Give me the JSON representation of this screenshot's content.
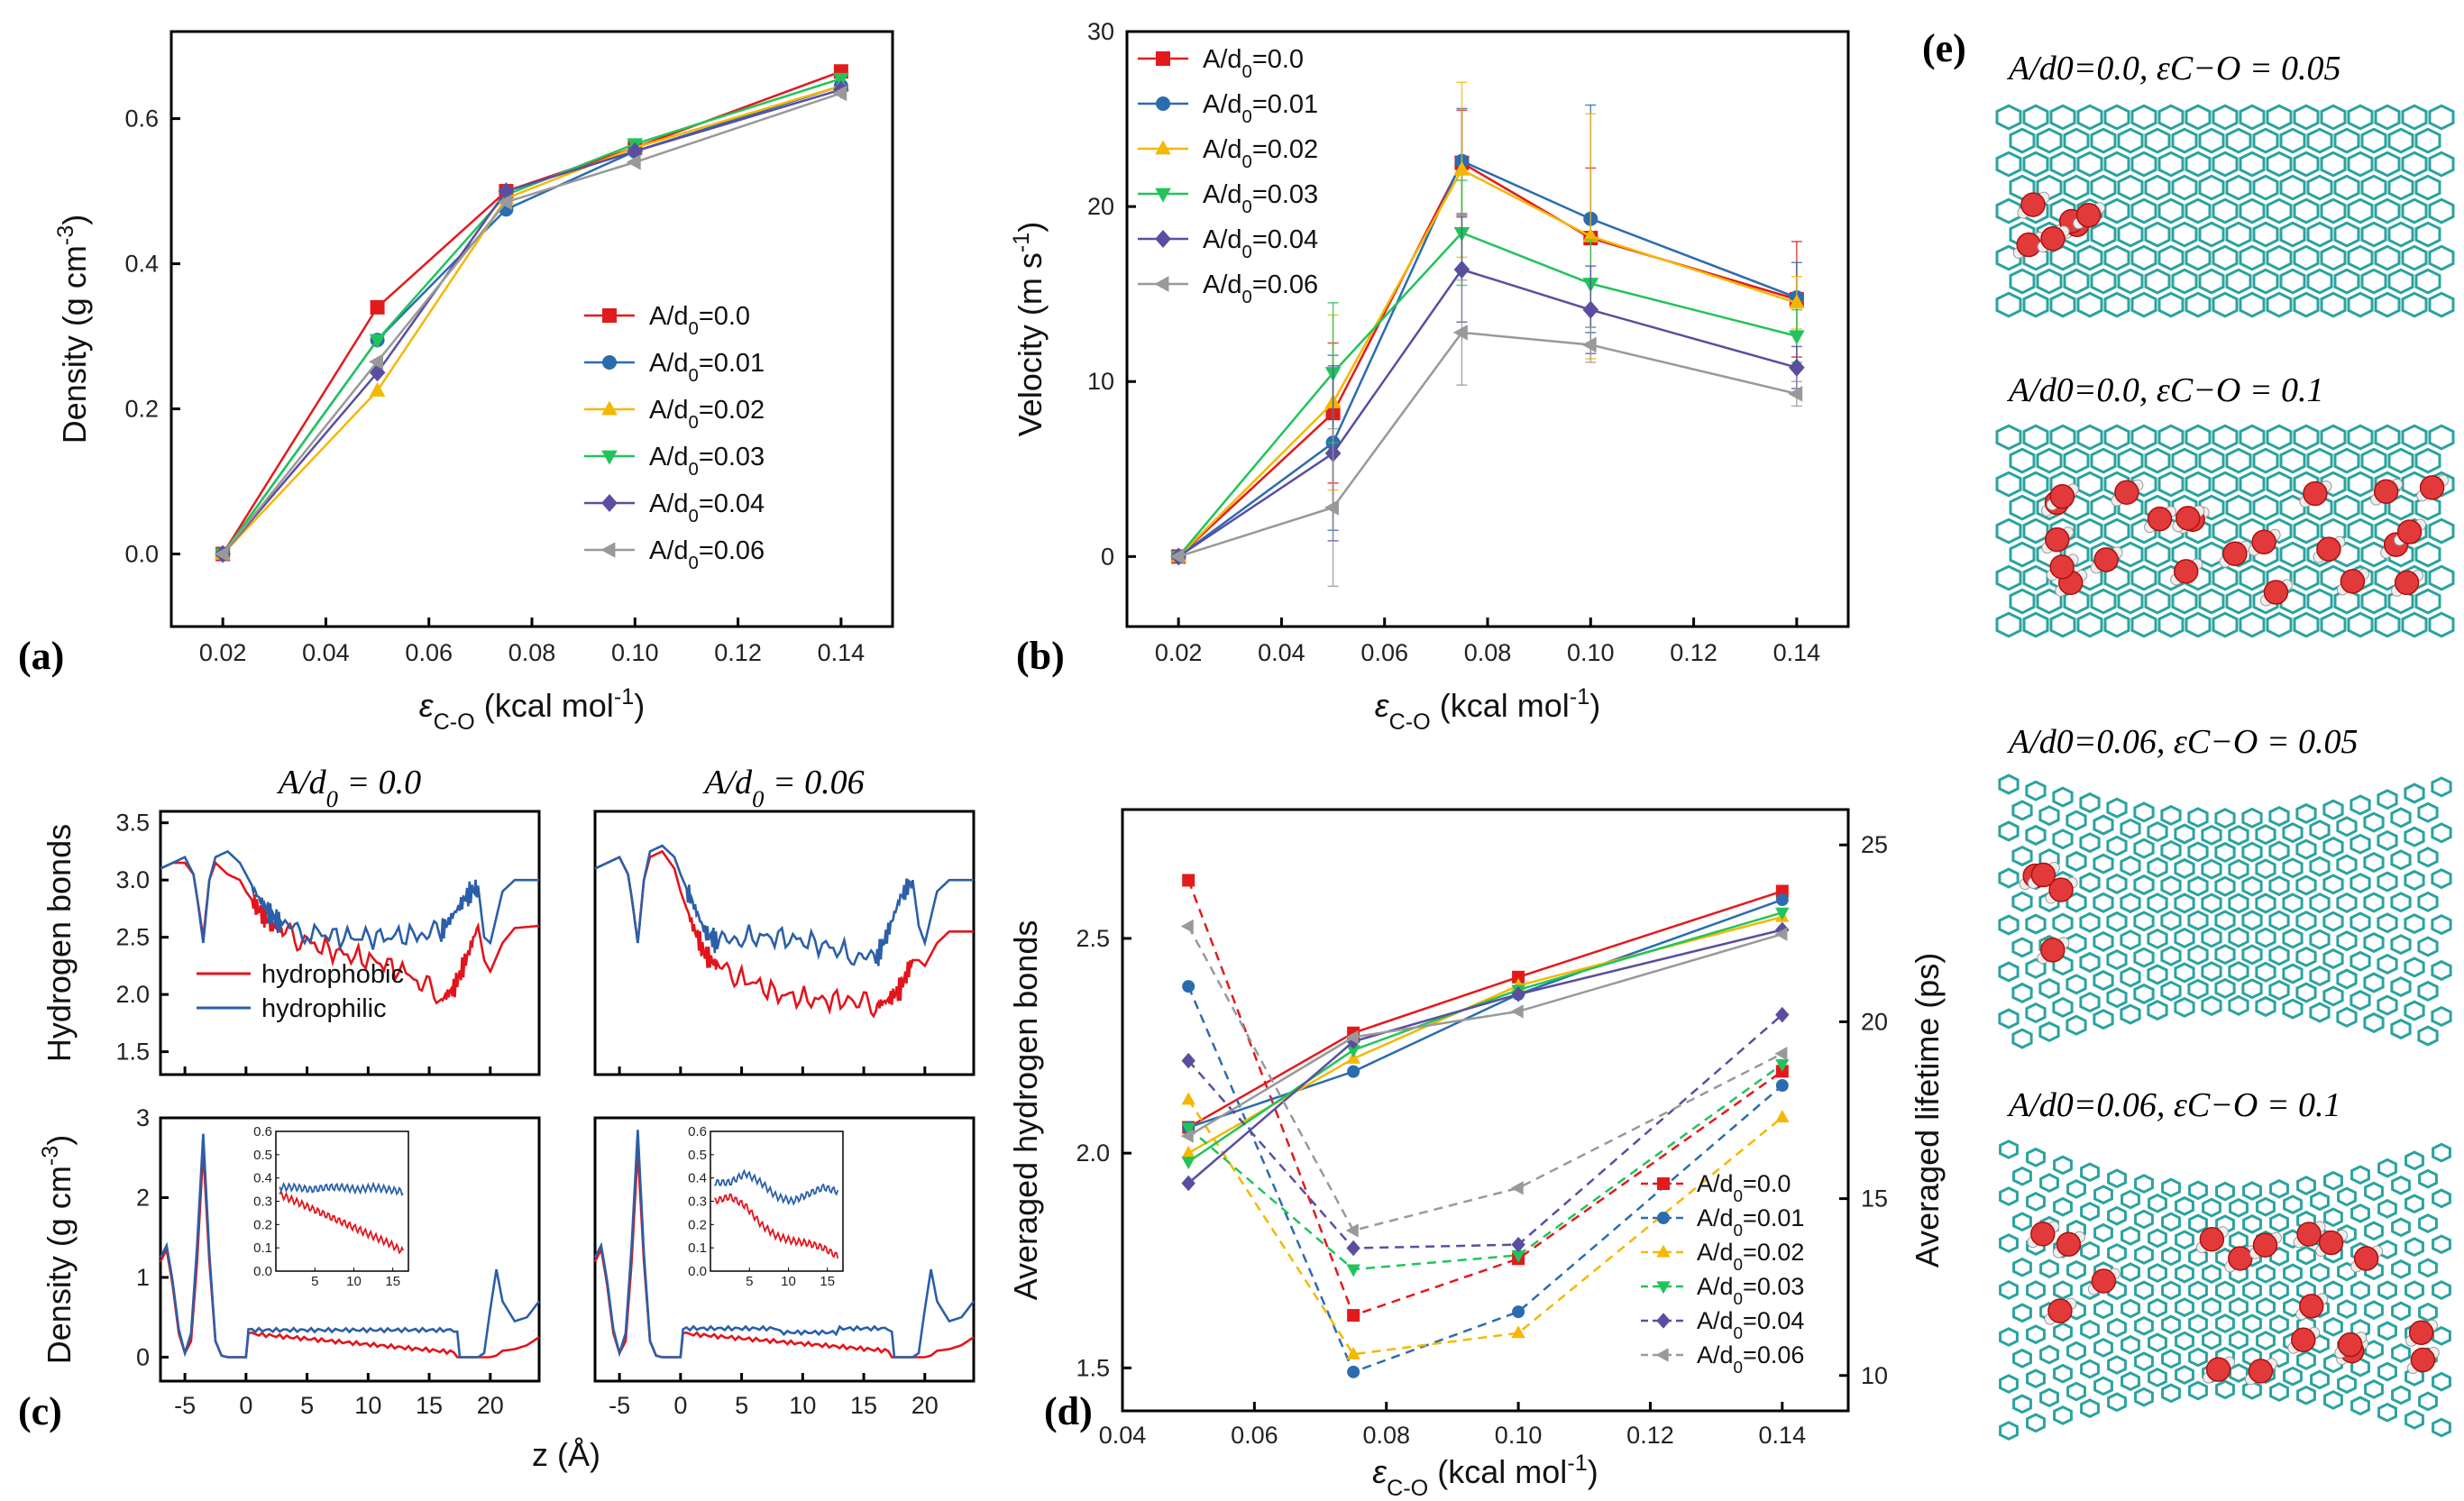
{
  "colors": {
    "s0": "#e31a1c",
    "s1": "#2b6cb0",
    "s2": "#f5b800",
    "s3": "#21c45a",
    "s4": "#5a4ea0",
    "s5": "#999999",
    "hydrophobic": "#e3141c",
    "hydrophilic": "#2b5fa8",
    "cnt": "#2aa39f",
    "oxygen": "#e23a3a",
    "hydrogen": "#eeeeee"
  },
  "panel_labels": {
    "a": "(a)",
    "b": "(b)",
    "c": "(c)",
    "d": "(d)",
    "e": "(e)"
  },
  "chart_data": [
    {
      "id": "a",
      "type": "line",
      "xlabel": "ε_C-O (kcal mol^-1)",
      "ylabel": "Density (g cm^-3)",
      "xlim": [
        0.01,
        0.15
      ],
      "ylim": [
        -0.1,
        0.72
      ],
      "xticks": [
        "0.02",
        "0.04",
        "0.06",
        "0.08",
        "0.10",
        "0.12",
        "0.14"
      ],
      "yticks": [
        "0.0",
        "0.2",
        "0.4",
        "0.6"
      ],
      "x": [
        0.02,
        0.05,
        0.075,
        0.1,
        0.14
      ],
      "legend_position": "center-right",
      "series": [
        {
          "name": "A/d0=0.0",
          "values": [
            0.0,
            0.34,
            0.5,
            0.56,
            0.665
          ],
          "marker": "square"
        },
        {
          "name": "A/d0=0.01",
          "values": [
            0.0,
            0.295,
            0.475,
            0.555,
            0.645
          ],
          "marker": "circle"
        },
        {
          "name": "A/d0=0.02",
          "values": [
            0.0,
            0.225,
            0.49,
            0.56,
            0.645
          ],
          "marker": "triangle-up"
        },
        {
          "name": "A/d0=0.03",
          "values": [
            0.0,
            0.295,
            0.495,
            0.565,
            0.655
          ],
          "marker": "triangle-down"
        },
        {
          "name": "A/d0=0.04",
          "values": [
            0.0,
            0.25,
            0.5,
            0.555,
            0.64
          ],
          "marker": "diamond"
        },
        {
          "name": "A/d0=0.06",
          "values": [
            0.0,
            0.265,
            0.485,
            0.54,
            0.635
          ],
          "marker": "triangle-left"
        }
      ]
    },
    {
      "id": "b",
      "type": "line",
      "xlabel": "ε_C-O (kcal mol^-1)",
      "ylabel": "Velocity (m s^-1)",
      "xlim": [
        0.01,
        0.15
      ],
      "ylim": [
        -4,
        30
      ],
      "xticks": [
        "0.02",
        "0.04",
        "0.06",
        "0.08",
        "0.10",
        "0.12",
        "0.14"
      ],
      "yticks": [
        "0",
        "10",
        "20",
        "30"
      ],
      "x": [
        0.02,
        0.05,
        0.075,
        0.1,
        0.14
      ],
      "legend_position": "top-left",
      "series": [
        {
          "name": "A/d0=0.0",
          "values": [
            0,
            8.2,
            22.5,
            18.2,
            14.7
          ],
          "err": [
            0,
            4,
            3,
            4,
            3.3
          ],
          "marker": "square"
        },
        {
          "name": "A/d0=0.01",
          "values": [
            0,
            6.5,
            22.6,
            19.3,
            14.8
          ],
          "err": [
            0,
            5,
            3,
            6.5,
            2
          ],
          "marker": "circle"
        },
        {
          "name": "A/d0=0.02",
          "values": [
            0,
            8.8,
            22.1,
            18.3,
            14.5
          ],
          "err": [
            0,
            5,
            5,
            7,
            1.5
          ],
          "marker": "triangle-up"
        },
        {
          "name": "A/d0=0.03",
          "values": [
            0,
            10.5,
            18.5,
            15.6,
            12.6
          ],
          "err": [
            0,
            4,
            3,
            2.5,
            1.5
          ],
          "marker": "triangle-down"
        },
        {
          "name": "A/d0=0.04",
          "values": [
            0,
            5.9,
            16.4,
            14.1,
            10.8
          ],
          "err": [
            0,
            5,
            3,
            2.5,
            1.2
          ],
          "marker": "diamond"
        },
        {
          "name": "A/d0=0.06",
          "values": [
            0,
            2.8,
            12.8,
            12.1,
            9.3
          ],
          "err": [
            0,
            4.5,
            3,
            1,
            0.7
          ],
          "marker": "triangle-left"
        }
      ]
    },
    {
      "id": "c",
      "type": "line",
      "column_titles": [
        "A/d0 = 0.0",
        "A/d0 = 0.06"
      ],
      "top_ylabel": "Hydrogen bonds",
      "bottom_ylabel": "Density (g cm^-3)",
      "xlabel": "z (Å)",
      "xlim": [
        -7,
        24
      ],
      "xticks": [
        "-5",
        "0",
        "5",
        "10",
        "15",
        "20"
      ],
      "top_ylim": [
        1.3,
        3.6
      ],
      "top_yticks": [
        "1.5",
        "2.0",
        "2.5",
        "3.0",
        "3.5"
      ],
      "bottom_ylim": [
        -0.3,
        3.0
      ],
      "bottom_yticks": [
        "0",
        "1",
        "2",
        "3"
      ],
      "inset_ylim": [
        0,
        0.6
      ],
      "inset_yticks": [
        "0.0",
        "0.1",
        "0.2",
        "0.3",
        "0.4",
        "0.5",
        "0.6"
      ],
      "inset_xticks": [
        "5",
        "10",
        "15"
      ],
      "legend": [
        "hydrophobic",
        "hydrophilic"
      ],
      "hbond_profile_z": [
        -7,
        -6,
        -5,
        -4.3,
        -4,
        -3.5,
        -3,
        -2.5,
        -1.5,
        -0.5,
        0,
        1,
        2,
        3,
        5,
        8,
        11,
        14,
        16,
        17,
        18,
        19,
        19.5,
        20,
        21,
        22,
        24
      ],
      "hbond_hydrophobic_left": [
        3.1,
        3.15,
        3.15,
        3.05,
        2.85,
        2.5,
        3.0,
        3.15,
        3.05,
        3.0,
        2.9,
        2.75,
        2.62,
        2.55,
        2.45,
        2.35,
        2.28,
        2.15,
        1.95,
        2.05,
        2.3,
        2.6,
        2.3,
        2.2,
        2.45,
        2.58,
        2.6
      ],
      "hbond_hydrophilic_left": [
        3.1,
        3.15,
        3.2,
        3.05,
        2.85,
        2.45,
        3.0,
        3.2,
        3.25,
        3.15,
        3.05,
        2.85,
        2.7,
        2.6,
        2.55,
        2.5,
        2.5,
        2.52,
        2.55,
        2.7,
        2.85,
        2.95,
        2.5,
        2.45,
        2.9,
        3.0,
        3.0
      ],
      "hbond_hydrophobic_right": [
        3.1,
        3.15,
        3.2,
        3.05,
        2.85,
        2.45,
        3.0,
        3.2,
        3.25,
        3.1,
        2.9,
        2.6,
        2.35,
        2.25,
        2.15,
        2.0,
        1.95,
        1.95,
        1.9,
        1.95,
        2.05,
        2.3,
        2.3,
        2.25,
        2.45,
        2.55,
        2.55
      ],
      "hbond_hydrophilic_right": [
        3.1,
        3.15,
        3.2,
        3.05,
        2.85,
        2.45,
        3.0,
        3.25,
        3.3,
        3.2,
        3.05,
        2.8,
        2.55,
        2.45,
        2.5,
        2.5,
        2.45,
        2.35,
        2.3,
        2.55,
        2.85,
        3.0,
        2.6,
        2.45,
        2.9,
        3.0,
        3.0
      ],
      "density_profile_z": [
        -7,
        -6.5,
        -6,
        -5.5,
        -5,
        -4.5,
        -4,
        -3.5,
        -3,
        -2.5,
        -2,
        -1.5,
        -1,
        -0.5,
        0,
        0.2,
        17.3,
        17.5,
        18,
        18.5,
        19,
        19.5,
        20,
        20.5,
        21,
        22,
        23,
        24
      ],
      "density_hydrophobic_left": [
        1.2,
        1.35,
        0.9,
        0.3,
        0.05,
        0.2,
        1.2,
        2.6,
        1.2,
        0.2,
        0.02,
        0,
        0,
        0,
        0,
        0.3,
        0.0,
        0,
        0,
        0,
        0,
        0,
        0,
        0.02,
        0.08,
        0.1,
        0.15,
        0.25
      ],
      "density_hydrophilic_left": [
        1.25,
        1.4,
        0.95,
        0.35,
        0.05,
        0.3,
        1.4,
        2.8,
        1.3,
        0.2,
        0.02,
        0,
        0,
        0,
        0,
        0.35,
        0.32,
        0,
        0,
        0,
        0,
        0.05,
        0.6,
        1.1,
        0.7,
        0.45,
        0.5,
        0.7
      ],
      "density_hydrophobic_right": [
        1.2,
        1.35,
        0.9,
        0.3,
        0.05,
        0.2,
        1.2,
        2.6,
        1.2,
        0.2,
        0.02,
        0,
        0,
        0,
        0,
        0.3,
        0.0,
        0,
        0,
        0,
        0,
        0,
        0,
        0.02,
        0.08,
        0.1,
        0.15,
        0.25
      ],
      "density_hydrophilic_right": [
        1.25,
        1.4,
        0.95,
        0.35,
        0.05,
        0.3,
        1.4,
        2.85,
        1.3,
        0.2,
        0.02,
        0,
        0,
        0,
        0,
        0.35,
        0.32,
        0,
        0,
        0,
        0,
        0.05,
        0.6,
        1.1,
        0.7,
        0.45,
        0.5,
        0.7
      ],
      "inset_z": [
        0,
        2,
        4,
        6,
        8,
        10,
        12,
        14,
        16
      ],
      "inset_hydrophobic_left": [
        0.33,
        0.3,
        0.27,
        0.24,
        0.21,
        0.18,
        0.15,
        0.12,
        0.08
      ],
      "inset_hydrophilic_left": [
        0.36,
        0.36,
        0.35,
        0.36,
        0.36,
        0.35,
        0.36,
        0.35,
        0.34
      ],
      "inset_hydrophobic_right": [
        0.3,
        0.32,
        0.28,
        0.2,
        0.15,
        0.13,
        0.12,
        0.1,
        0.06
      ],
      "inset_hydrophilic_right": [
        0.38,
        0.38,
        0.42,
        0.38,
        0.32,
        0.3,
        0.33,
        0.36,
        0.34
      ]
    },
    {
      "id": "d",
      "type": "line",
      "xlabel": "ε_C-O (kcal mol^-1)",
      "ylabel": "Averaged hydrogen bonds",
      "ylabel_right": "Averaged lifetime (ps)",
      "xlim": [
        0.04,
        0.15
      ],
      "ylim": [
        1.4,
        2.8
      ],
      "ylim_right": [
        9,
        26
      ],
      "xticks": [
        "0.04",
        "0.06",
        "0.08",
        "0.10",
        "0.12",
        "0.14"
      ],
      "yticks": [
        "1.5",
        "2.0",
        "2.5"
      ],
      "yticks_right": [
        "10",
        "15",
        "20",
        "25"
      ],
      "x": [
        0.05,
        0.075,
        0.1,
        0.14
      ],
      "legend_position": "bottom-right",
      "series": [
        {
          "name": "A/d0=0.0",
          "hbonds": [
            2.06,
            2.28,
            2.41,
            2.61
          ],
          "lifetime": [
            24.0,
            11.7,
            13.3,
            18.6
          ],
          "marker": "square"
        },
        {
          "name": "A/d0=0.01",
          "hbonds": [
            2.06,
            2.19,
            2.37,
            2.59
          ],
          "lifetime": [
            21.0,
            10.1,
            11.8,
            18.2
          ],
          "marker": "circle"
        },
        {
          "name": "A/d0=0.02",
          "hbonds": [
            2.0,
            2.22,
            2.39,
            2.55
          ],
          "lifetime": [
            17.8,
            10.6,
            11.2,
            17.3
          ],
          "marker": "triangle-up"
        },
        {
          "name": "A/d0=0.03",
          "hbonds": [
            1.98,
            2.24,
            2.38,
            2.56
          ],
          "lifetime": [
            17.0,
            13.0,
            13.4,
            18.8
          ],
          "marker": "triangle-down"
        },
        {
          "name": "A/d0=0.04",
          "hbonds": [
            1.93,
            2.26,
            2.37,
            2.52
          ],
          "lifetime": [
            18.9,
            13.6,
            13.7,
            20.2
          ],
          "marker": "diamond"
        },
        {
          "name": "A/d0=0.06",
          "hbonds": [
            2.04,
            2.27,
            2.33,
            2.51
          ],
          "lifetime": [
            22.7,
            14.1,
            15.3,
            19.1
          ],
          "marker": "triangle-left"
        }
      ]
    }
  ],
  "panel_e_titles": [
    "A/d0=0.0, εC−O = 0.05",
    "A/d0=0.0, εC−O = 0.1",
    "A/d0=0.06, εC−O = 0.05",
    "A/d0=0.06, εC−O = 0.1"
  ]
}
